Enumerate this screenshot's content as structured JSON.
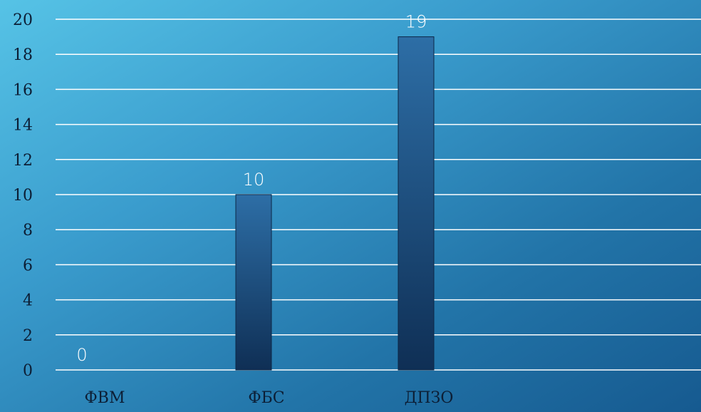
{
  "chart_data": {
    "type": "bar",
    "categories": [
      "ФВМ",
      "ФБС",
      "ДПЗО"
    ],
    "values": [
      0,
      10,
      19
    ],
    "data_labels": [
      "0",
      "10",
      "19"
    ],
    "title": "",
    "xlabel": "",
    "ylabel": "",
    "ylim": [
      0,
      20
    ],
    "yticks": [
      0,
      2,
      4,
      6,
      8,
      10,
      12,
      14,
      16,
      18,
      20
    ],
    "ytick_labels": [
      "0",
      "2",
      "4",
      "6",
      "8",
      "10",
      "12",
      "14",
      "16",
      "18",
      "20"
    ],
    "grid": true,
    "legend": "none",
    "bar_color": "#1e4f80",
    "grid_color": "#ffffff"
  }
}
